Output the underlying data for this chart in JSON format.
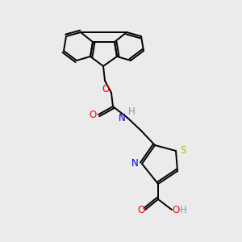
{
  "background_color": "#ebebeb",
  "atom_colors": {
    "C": "#000000",
    "N": "#0000cc",
    "O": "#ff0000",
    "S": "#b8b800",
    "H": "#7a9a9a"
  },
  "bond_color": "#000000",
  "figsize": [
    3.0,
    3.0
  ],
  "dpi": 100
}
